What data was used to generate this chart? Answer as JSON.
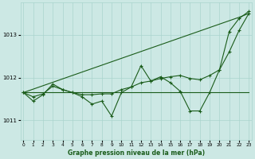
{
  "title": "Graphe pression niveau de la mer (hPa)",
  "background_color": "#cce8e4",
  "line_color": "#1a5c1a",
  "grid_color": "#aad4ce",
  "x_ticks": [
    0,
    1,
    2,
    3,
    4,
    5,
    6,
    7,
    8,
    9,
    10,
    11,
    12,
    13,
    14,
    15,
    16,
    17,
    18,
    19,
    20,
    21,
    22,
    23
  ],
  "y_ticks": [
    1011,
    1012,
    1013
  ],
  "ylim": [
    1010.55,
    1013.75
  ],
  "xlim": [
    -0.3,
    23.3
  ],
  "series": {
    "line_flat": [
      1011.65,
      1011.65,
      1011.65,
      1011.65,
      1011.65,
      1011.65,
      1011.65,
      1011.65,
      1011.65,
      1011.65,
      1011.65,
      1011.65,
      1011.65,
      1011.65,
      1011.65,
      1011.65,
      1011.65,
      1011.65,
      1011.65,
      1011.65,
      1011.65,
      1011.65,
      1011.65,
      1011.65
    ],
    "line_diagonal": [
      1011.65,
      1011.73,
      1011.81,
      1011.89,
      1011.97,
      1012.05,
      1012.13,
      1012.21,
      1012.29,
      1012.37,
      1012.45,
      1012.53,
      1012.61,
      1012.69,
      1012.77,
      1012.85,
      1012.93,
      1013.01,
      1013.09,
      1013.17,
      1013.25,
      1013.33,
      1013.41,
      1013.5
    ],
    "line_smooth": [
      1011.65,
      1011.55,
      1011.62,
      1011.8,
      1011.72,
      1011.65,
      1011.6,
      1011.6,
      1011.62,
      1011.62,
      1011.72,
      1011.78,
      1011.88,
      1011.92,
      1011.98,
      1012.02,
      1012.05,
      1011.98,
      1011.95,
      1012.05,
      1012.18,
      1012.6,
      1013.1,
      1013.5
    ],
    "line_zigzag": [
      1011.65,
      1011.45,
      1011.6,
      1011.85,
      1011.72,
      1011.65,
      1011.55,
      1011.38,
      1011.45,
      1011.1,
      1011.65,
      1011.78,
      1012.28,
      1011.92,
      1012.02,
      1011.88,
      1011.68,
      1011.22,
      1011.22,
      1011.65,
      1012.18,
      1013.08,
      1013.38,
      1013.55
    ]
  }
}
